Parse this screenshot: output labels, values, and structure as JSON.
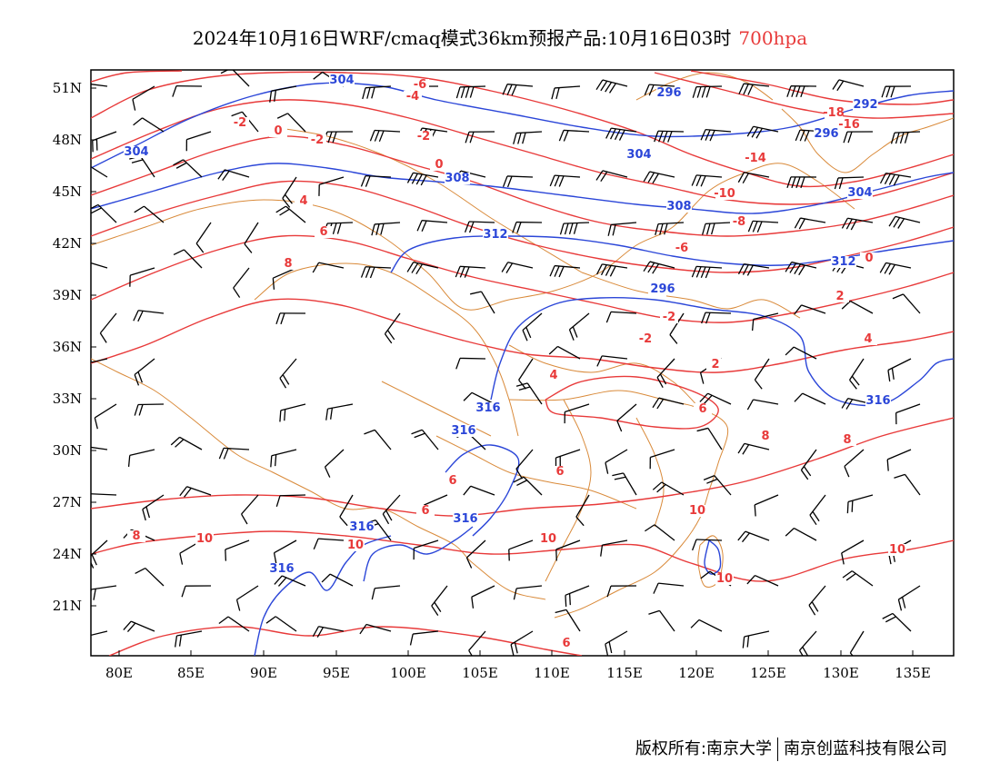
{
  "title": {
    "main": "2024年10月16日WRF/cmaq模式36km预报产品:10月16日03时",
    "level": "700hpa",
    "level_color": "#e83a3a"
  },
  "axes": {
    "lat_labels": [
      "51N",
      "48N",
      "45N",
      "42N",
      "39N",
      "36N",
      "33N",
      "30N",
      "27N",
      "24N",
      "21N"
    ],
    "lon_labels": [
      "80E",
      "85E",
      "90E",
      "95E",
      "100E",
      "105E",
      "110E",
      "115E",
      "120E",
      "125E",
      "130E",
      "135E"
    ]
  },
  "colors": {
    "temperature_contour": "#e83a3a",
    "height_contour": "#2b46d8",
    "boundaries": "#d98a3a",
    "wind_barbs": "#000000"
  },
  "temperature_labels": [
    "-6",
    "-4",
    "-2",
    "0",
    "-2",
    "-2",
    "0",
    "4",
    "6",
    "8",
    "-18",
    "-16",
    "-14",
    "-10",
    "-8",
    "-6",
    "-4",
    "-2",
    "0",
    "2",
    "4",
    "-2",
    "2",
    "4",
    "6",
    "6",
    "6",
    "6",
    "8",
    "8",
    "10",
    "10",
    "10",
    "10",
    "10",
    "10",
    "6",
    "8"
  ],
  "height_labels": [
    "304",
    "304",
    "296",
    "292",
    "296",
    "304",
    "308",
    "304",
    "308",
    "312",
    "312",
    "296",
    "316",
    "316",
    "316",
    "316",
    "316",
    "316"
  ],
  "credit": {
    "left": "版权所有:南京大学",
    "right": "南京创蓝科技有限公司"
  }
}
